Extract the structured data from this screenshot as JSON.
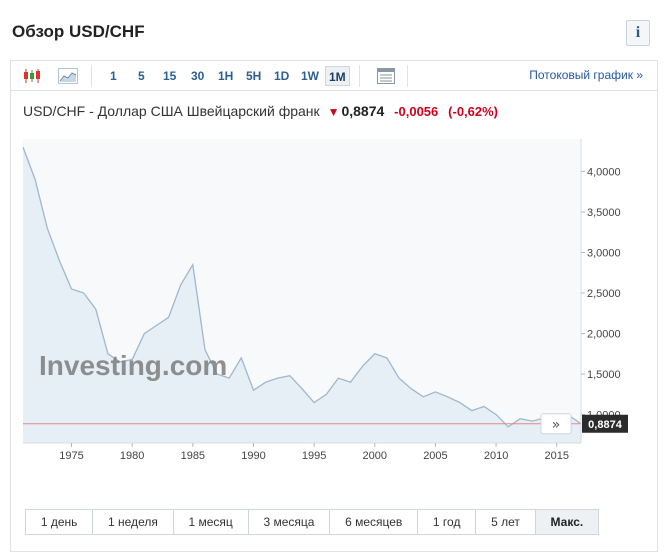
{
  "page": {
    "title": "Обзор USD/CHF",
    "info_label": "i"
  },
  "toolbar": {
    "timeframes": [
      "1",
      "5",
      "15",
      "30",
      "1H",
      "5H",
      "1D",
      "1W",
      "1M"
    ],
    "active_timeframe": "1M",
    "stream_link": "Потоковый график »"
  },
  "quote": {
    "name": "USD/CHF - Доллар США Швейцарский франк",
    "price": "0,8874",
    "change": "-0,0056",
    "change_pct": "(-0,62%)",
    "direction": "down"
  },
  "chart_data": {
    "type": "area",
    "title": "",
    "watermark": "Investing.com",
    "x": [
      1971,
      1972,
      1973,
      1974,
      1975,
      1976,
      1977,
      1978,
      1979,
      1980,
      1981,
      1982,
      1983,
      1984,
      1985,
      1986,
      1987,
      1988,
      1989,
      1990,
      1991,
      1992,
      1993,
      1994,
      1995,
      1996,
      1997,
      1998,
      1999,
      2000,
      2001,
      2002,
      2003,
      2004,
      2005,
      2006,
      2007,
      2008,
      2009,
      2010,
      2011,
      2012,
      2013,
      2014,
      2015,
      2016,
      2017
    ],
    "values": [
      4.3,
      3.9,
      3.3,
      2.9,
      2.55,
      2.5,
      2.3,
      1.75,
      1.65,
      1.68,
      2.0,
      2.1,
      2.2,
      2.6,
      2.85,
      1.8,
      1.5,
      1.45,
      1.7,
      1.3,
      1.4,
      1.45,
      1.48,
      1.32,
      1.15,
      1.25,
      1.45,
      1.4,
      1.6,
      1.75,
      1.7,
      1.45,
      1.32,
      1.22,
      1.28,
      1.22,
      1.15,
      1.05,
      1.1,
      1.0,
      0.85,
      0.95,
      0.92,
      0.96,
      0.98,
      0.99,
      0.8874
    ],
    "xlim": [
      1971,
      2017
    ],
    "ylim": [
      0.65,
      4.4
    ],
    "x_ticks": [
      "1975",
      "1980",
      "1985",
      "1990",
      "1995",
      "2000",
      "2005",
      "2010",
      "2015"
    ],
    "x_tick_values": [
      1975,
      1980,
      1985,
      1990,
      1995,
      2000,
      2005,
      2010,
      2015
    ],
    "y_ticks": [
      "1,0000",
      "1,5000",
      "2,0000",
      "2,5000",
      "3,0000",
      "3,5000",
      "4,0000"
    ],
    "y_tick_values": [
      1.0,
      1.5,
      2.0,
      2.5,
      3.0,
      3.5,
      4.0
    ],
    "last_value_label": "0,8874",
    "last_value": 0.8874,
    "colors": {
      "line": "#9fb8cf",
      "fill": "#e6eef6",
      "last_line": "#e08a8a",
      "badge": "#2b2b2b"
    }
  },
  "ranges": {
    "items": [
      "1 день",
      "1 неделя",
      "1 месяц",
      "3 месяца",
      "6 месяцев",
      "1 год",
      "5 лет",
      "Макс."
    ],
    "active": "Макс."
  }
}
